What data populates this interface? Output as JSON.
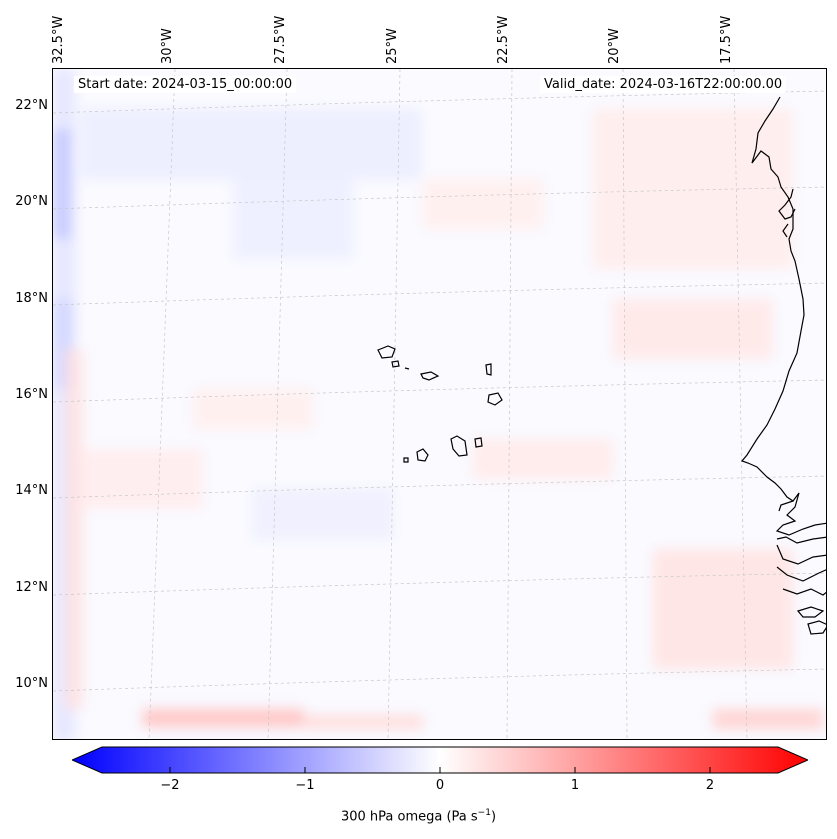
{
  "map": {
    "start_date": "Start date: 2024-03-15_00:00:00",
    "valid_date": "Valid_date: 2024-03-16T22:00:00.00",
    "lon_labels": [
      "32.5°W",
      "30°W",
      "27.5°W",
      "25°W",
      "22.5°W",
      "20°W",
      "17.5°W"
    ],
    "lat_labels": [
      "22°N",
      "20°N",
      "18°N",
      "16°N",
      "14°N",
      "12°N",
      "10°N"
    ],
    "region": "Cape Verde / West Africa coast",
    "field": "300 hPa omega"
  },
  "colorbar": {
    "ticks": [
      "−2",
      "−1",
      "0",
      "1",
      "2"
    ],
    "tick_values": [
      -2,
      -1,
      0,
      1,
      2
    ],
    "range": [
      -2.75,
      2.75
    ],
    "label": "300 hPa omega (Pa s",
    "label_sup": "−1",
    "label_end": ")",
    "low_color": "#0000ff",
    "mid_color": "#ffffff",
    "high_color": "#ff0000"
  }
}
